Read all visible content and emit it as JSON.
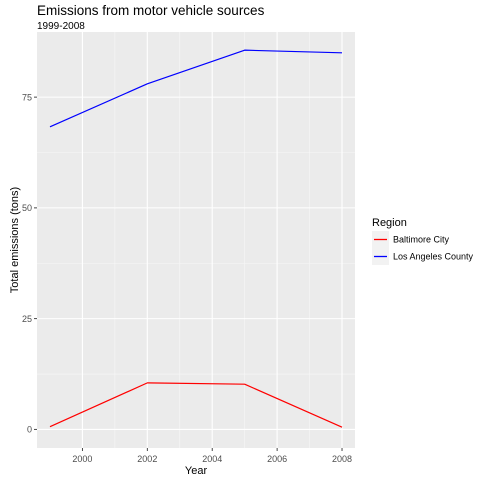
{
  "chart_data": {
    "type": "line",
    "title": "Emissions from motor vehicle sources",
    "subtitle": "1999-2008",
    "xlabel": "Year",
    "ylabel": "Total emissions (tons)",
    "xlim": [
      1998.6,
      2008.4
    ],
    "ylim": [
      -4.2,
      89.7
    ],
    "x_ticks": [
      2000,
      2002,
      2004,
      2006,
      2008
    ],
    "y_ticks": [
      0,
      25,
      50,
      75
    ],
    "x_tick_labels": [
      "2000",
      "2002",
      "2004",
      "2006",
      "2008"
    ],
    "y_tick_labels": [
      "0",
      "25",
      "50",
      "75"
    ],
    "grid": true,
    "legend": {
      "title": "Region",
      "position": "right"
    },
    "x": [
      1999,
      2002,
      2005,
      2008
    ],
    "series": [
      {
        "name": "Baltimore City",
        "color": "#ff0000",
        "values": [
          0.6,
          10.5,
          10.2,
          0.5
        ]
      },
      {
        "name": "Los Angeles County",
        "color": "#0000ff",
        "values": [
          68.3,
          78.0,
          85.6,
          85.0
        ]
      }
    ]
  }
}
